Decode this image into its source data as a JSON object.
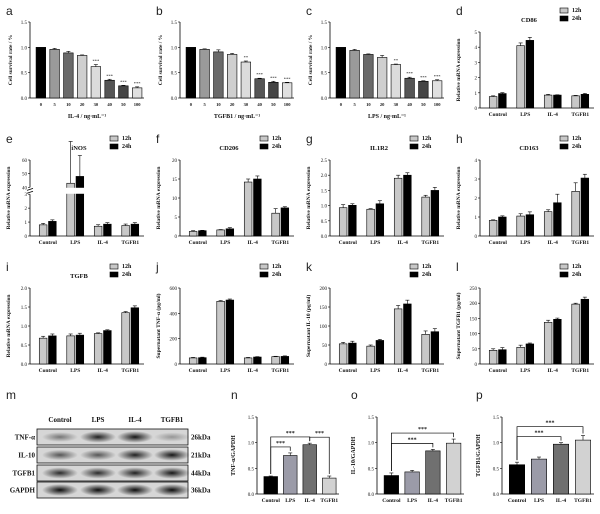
{
  "chart_data": [
    {
      "label": "a",
      "type": "bar",
      "title": "",
      "ylabel": "Cell survival rate / %",
      "xlabel": "IL-4 / ng·mL⁻¹",
      "categories": [
        "0",
        "5",
        "10",
        "20",
        "30",
        "40",
        "50",
        "100"
      ],
      "values": [
        1.0,
        0.96,
        0.89,
        0.84,
        0.62,
        0.35,
        0.24,
        0.2
      ],
      "errors": [
        0.0,
        0.02,
        0.03,
        0.01,
        0.04,
        0.02,
        0.01,
        0.02
      ],
      "colors": [
        "#000000",
        "#9a9a9a",
        "#6a6a6a",
        "#cfcfcf",
        "#dcdcdc",
        "#555555",
        "#444444",
        "#e0e0e0"
      ],
      "annotations": [
        "",
        "",
        "",
        "",
        "***",
        "***",
        "***",
        "***"
      ],
      "ylim": [
        0,
        1.5
      ],
      "ytick_labels": [
        "0.0",
        "0.5",
        "1.0",
        "1.5"
      ]
    },
    {
      "label": "b",
      "type": "bar",
      "title": "",
      "ylabel": "Cell survival rate / %",
      "xlabel": "TGFB1 / ng·mL⁻¹",
      "categories": [
        "0",
        "5",
        "10",
        "20",
        "30",
        "40",
        "50",
        "100"
      ],
      "values": [
        1.0,
        0.96,
        0.91,
        0.86,
        0.71,
        0.38,
        0.31,
        0.3
      ],
      "errors": [
        0.0,
        0.01,
        0.04,
        0.02,
        0.02,
        0.01,
        0.02,
        0.01
      ],
      "colors": [
        "#000000",
        "#9a9a9a",
        "#6a6a6a",
        "#cfcfcf",
        "#dcdcdc",
        "#555555",
        "#444444",
        "#e0e0e0"
      ],
      "annotations": [
        "",
        "",
        "",
        "",
        "**",
        "***",
        "***",
        "***"
      ],
      "ylim": [
        0,
        1.5
      ],
      "ytick_labels": [
        "0.0",
        "0.5",
        "1.0",
        "1.5"
      ]
    },
    {
      "label": "c",
      "type": "bar",
      "title": "",
      "ylabel": "Cell survival rate / %",
      "xlabel": "LPS / ng·mL⁻¹",
      "categories": [
        "0",
        "5",
        "10",
        "20",
        "30",
        "40",
        "50",
        "100"
      ],
      "values": [
        1.0,
        0.94,
        0.86,
        0.8,
        0.66,
        0.39,
        0.33,
        0.34
      ],
      "errors": [
        0.0,
        0.02,
        0.01,
        0.04,
        0.01,
        0.02,
        0.01,
        0.02
      ],
      "colors": [
        "#000000",
        "#9a9a9a",
        "#6a6a6a",
        "#cfcfcf",
        "#dcdcdc",
        "#555555",
        "#444444",
        "#e0e0e0"
      ],
      "annotations": [
        "",
        "",
        "",
        "",
        "**",
        "***",
        "***",
        "***"
      ],
      "ylim": [
        0,
        1.5
      ],
      "ytick_labels": [
        "0.0",
        "0.5",
        "1.0",
        "1.5"
      ]
    },
    {
      "label": "d",
      "type": "grouped-bar",
      "title": "CD86",
      "ylabel": "Relative mRNA expression",
      "xlabel": "",
      "categories": [
        "Control",
        "LPS",
        "IL-4",
        "TGFB1"
      ],
      "series": [
        {
          "name": "12h",
          "color": "#c8c8c8",
          "values": [
            0.75,
            4.1,
            0.85,
            0.8
          ],
          "errors": [
            0.05,
            0.18,
            0.05,
            0.03
          ]
        },
        {
          "name": "24h",
          "color": "#000000",
          "values": [
            0.95,
            4.45,
            0.85,
            0.9
          ],
          "errors": [
            0.06,
            0.2,
            0.02,
            0.06
          ]
        }
      ],
      "legend": "top-right",
      "ylim": [
        0,
        5
      ],
      "ytick_labels": [
        "0",
        "1",
        "2",
        "3",
        "4",
        "5"
      ]
    },
    {
      "label": "e",
      "type": "grouped-bar",
      "title": "iNOS",
      "ylabel": "Relative mRNA expression",
      "xlabel": "",
      "categories": [
        "Control",
        "LPS",
        "IL-4",
        "TGFB1"
      ],
      "series": [
        {
          "name": "12h",
          "color": "#c8c8c8",
          "values": [
            0.8,
            43,
            0.7,
            0.75
          ],
          "errors": [
            0.08,
            3,
            0.03,
            0.05
          ]
        },
        {
          "name": "24h",
          "color": "#000000",
          "values": [
            1.05,
            48,
            0.85,
            0.85
          ],
          "errors": [
            0.06,
            1.5,
            0.04,
            0.03
          ]
        }
      ],
      "legend": "top-right",
      "broken_axis": {
        "lower": [
          0,
          3
        ],
        "upper": [
          40,
          60
        ]
      },
      "ytick_labels": [
        "0",
        "1",
        "2",
        "3",
        "40",
        "50",
        "60"
      ]
    },
    {
      "label": "f",
      "type": "grouped-bar",
      "title": "CD206",
      "ylabel": "Relative mRNA expression",
      "xlabel": "",
      "categories": [
        "Control",
        "LPS",
        "IL-4",
        "TGFB1"
      ],
      "series": [
        {
          "name": "12h",
          "color": "#c8c8c8",
          "values": [
            1.2,
            1.6,
            14.2,
            6.0
          ],
          "errors": [
            0.2,
            0.1,
            0.8,
            1.2
          ]
        },
        {
          "name": "24h",
          "color": "#000000",
          "values": [
            1.4,
            1.9,
            15.0,
            7.4
          ],
          "errors": [
            0.1,
            0.3,
            0.8,
            0.3
          ]
        }
      ],
      "legend": "top-right",
      "ylim": [
        0,
        20
      ],
      "ytick_labels": [
        "0",
        "5",
        "10",
        "15",
        "20"
      ]
    },
    {
      "label": "g",
      "type": "grouped-bar",
      "title": "IL1R2",
      "ylabel": "Relative mRNA expression",
      "xlabel": "",
      "categories": [
        "Control",
        "LPS",
        "IL-4",
        "TGFB1"
      ],
      "series": [
        {
          "name": "12h",
          "color": "#c8c8c8",
          "values": [
            0.93,
            0.88,
            1.9,
            1.28
          ],
          "errors": [
            0.1,
            0.02,
            0.1,
            0.06
          ]
        },
        {
          "name": "24h",
          "color": "#000000",
          "values": [
            1.01,
            1.06,
            2.0,
            1.5
          ],
          "errors": [
            0.05,
            0.1,
            0.08,
            0.1
          ]
        }
      ],
      "legend": "top-right",
      "ylim": [
        0,
        2.5
      ],
      "ytick_labels": [
        "0.0",
        "0.5",
        "1.0",
        "1.5",
        "2.0",
        "2.5"
      ]
    },
    {
      "label": "h",
      "type": "grouped-bar",
      "title": "CD163",
      "ylabel": "Relative mRNA expression",
      "xlabel": "",
      "categories": [
        "Control",
        "LPS",
        "IL-4",
        "TGFB1"
      ],
      "series": [
        {
          "name": "12h",
          "color": "#c8c8c8",
          "values": [
            0.82,
            1.05,
            1.28,
            2.35
          ],
          "errors": [
            0.03,
            0.12,
            0.1,
            0.45
          ]
        },
        {
          "name": "24h",
          "color": "#000000",
          "values": [
            1.0,
            1.12,
            1.75,
            3.05
          ],
          "errors": [
            0.06,
            0.15,
            0.45,
            0.2
          ]
        }
      ],
      "legend": "top-right",
      "ylim": [
        0,
        4
      ],
      "ytick_labels": [
        "0",
        "1",
        "2",
        "3",
        "4"
      ]
    },
    {
      "label": "i",
      "type": "grouped-bar",
      "title": "TGFB",
      "ylabel": "Relative mRNA expression",
      "xlabel": "",
      "categories": [
        "Control",
        "LPS",
        "IL-4",
        "TGFB1"
      ],
      "series": [
        {
          "name": "12h",
          "color": "#c8c8c8",
          "values": [
            0.68,
            0.74,
            0.8,
            1.35
          ],
          "errors": [
            0.05,
            0.05,
            0.02,
            0.03
          ]
        },
        {
          "name": "24h",
          "color": "#000000",
          "values": [
            0.74,
            0.76,
            0.88,
            1.48
          ],
          "errors": [
            0.05,
            0.05,
            0.02,
            0.05
          ]
        }
      ],
      "legend": "top-right",
      "ylim": [
        0,
        2.0
      ],
      "ytick_labels": [
        "0.0",
        "0.5",
        "1.0",
        "1.5",
        "2.0"
      ]
    },
    {
      "label": "j",
      "type": "grouped-bar",
      "title": "",
      "ylabel": "Supernatant TNF-α (pg/ml)",
      "xlabel": "",
      "categories": [
        "Control",
        "LPS",
        "IL-4",
        "TGFB1"
      ],
      "series": [
        {
          "name": "12h",
          "color": "#c8c8c8",
          "values": [
            48,
            495,
            48,
            58
          ],
          "errors": [
            4,
            6,
            4,
            3
          ]
        },
        {
          "name": "24h",
          "color": "#000000",
          "values": [
            50,
            505,
            55,
            60
          ],
          "errors": [
            4,
            8,
            3,
            4
          ]
        }
      ],
      "legend": "top-right",
      "ylim": [
        0,
        600
      ],
      "ytick_labels": [
        "0",
        "200",
        "400",
        "600"
      ]
    },
    {
      "label": "k",
      "type": "grouped-bar",
      "title": "",
      "ylabel": "Supernatant IL-10 (pg/ml)",
      "xlabel": "",
      "categories": [
        "Control",
        "LPS",
        "IL-4",
        "TGFB1"
      ],
      "series": [
        {
          "name": "12h",
          "color": "#c8c8c8",
          "values": [
            53,
            47,
            145,
            78
          ],
          "errors": [
            4,
            3,
            9,
            9
          ]
        },
        {
          "name": "24h",
          "color": "#000000",
          "values": [
            55,
            62,
            158,
            85
          ],
          "errors": [
            5,
            3,
            10,
            8
          ]
        }
      ],
      "legend": "top-right",
      "ylim": [
        0,
        200
      ],
      "ytick_labels": [
        "0",
        "50",
        "100",
        "150",
        "200"
      ]
    },
    {
      "label": "l",
      "type": "grouped-bar",
      "title": "",
      "ylabel": "Supernatant TGFB1 (pg/ml)",
      "xlabel": "",
      "categories": [
        "Control",
        "LPS",
        "IL-4",
        "TGFB1"
      ],
      "series": [
        {
          "name": "12h",
          "color": "#c8c8c8",
          "values": [
            45,
            55,
            137,
            197
          ],
          "errors": [
            5,
            7,
            7,
            3
          ]
        },
        {
          "name": "24h",
          "color": "#000000",
          "values": [
            47,
            66,
            147,
            213
          ],
          "errors": [
            7,
            3,
            4,
            7
          ]
        }
      ],
      "legend": "top-right",
      "ylim": [
        0,
        250
      ],
      "ytick_labels": [
        "0",
        "50",
        "100",
        "150",
        "200",
        "250"
      ]
    },
    {
      "label": "n",
      "type": "bar",
      "title": "",
      "ylabel": "TNF-α/GAPDH",
      "xlabel": "",
      "categories": [
        "Control",
        "LPS",
        "IL-4",
        "TGFB1"
      ],
      "values": [
        0.34,
        0.75,
        0.96,
        0.31
      ],
      "errors": [
        0.01,
        0.05,
        0.03,
        0.04
      ],
      "colors": [
        "#000000",
        "#9b9ba8",
        "#707070",
        "#d2d2d2"
      ],
      "comparisons": [
        {
          "from": 0,
          "to": 1,
          "label": "***"
        },
        {
          "from": 0,
          "to": 2,
          "label": "***"
        },
        {
          "from": 2,
          "to": 3,
          "label": "***"
        }
      ],
      "ylim": [
        0,
        1.5
      ],
      "ytick_labels": [
        "0.0",
        "0.5",
        "1.0",
        "1.5"
      ]
    },
    {
      "label": "o",
      "type": "bar",
      "title": "",
      "ylabel": "IL-10/GAPDH",
      "xlabel": "",
      "categories": [
        "Control",
        "LPS",
        "IL-4",
        "TGFB1"
      ],
      "values": [
        0.36,
        0.43,
        0.84,
        0.99
      ],
      "errors": [
        0.05,
        0.03,
        0.03,
        0.08
      ],
      "colors": [
        "#000000",
        "#9b9ba8",
        "#707070",
        "#d2d2d2"
      ],
      "comparisons": [
        {
          "from": 0,
          "to": 2,
          "label": "***"
        },
        {
          "from": 0,
          "to": 3,
          "label": "***"
        }
      ],
      "ylim": [
        0,
        1.5
      ],
      "ytick_labels": [
        "0.0",
        "0.5",
        "1.0",
        "1.5"
      ]
    },
    {
      "label": "p",
      "type": "bar",
      "title": "",
      "ylabel": "TGFB1/GAPDH",
      "xlabel": "",
      "categories": [
        "Control",
        "LPS",
        "IL-4",
        "TGFB1"
      ],
      "values": [
        0.57,
        0.68,
        0.97,
        1.05
      ],
      "errors": [
        0.05,
        0.04,
        0.03,
        0.09
      ],
      "colors": [
        "#000000",
        "#9b9ba8",
        "#707070",
        "#d2d2d2"
      ],
      "comparisons": [
        {
          "from": 0,
          "to": 2,
          "label": "***"
        },
        {
          "from": 0,
          "to": 3,
          "label": "***"
        }
      ],
      "ylim": [
        0,
        1.5
      ],
      "ytick_labels": [
        "0.0",
        "0.5",
        "1.0",
        "1.5"
      ]
    }
  ],
  "blot": {
    "label": "m",
    "lanes": [
      "Control",
      "LPS",
      "IL-4",
      "TGFB1"
    ],
    "rows": [
      {
        "protein": "TNF-α",
        "size": "26kDa",
        "intensity": [
          0.45,
          0.85,
          0.9,
          0.3
        ]
      },
      {
        "protein": "IL-10",
        "size": "21kDa",
        "intensity": [
          0.6,
          0.6,
          0.85,
          0.9
        ]
      },
      {
        "protein": "TGFB1",
        "size": "44kDa",
        "intensity": [
          0.8,
          0.8,
          0.85,
          0.9
        ]
      },
      {
        "protein": "GAPDH",
        "size": "36kDa",
        "intensity": [
          0.95,
          0.95,
          0.95,
          0.95
        ]
      }
    ]
  }
}
